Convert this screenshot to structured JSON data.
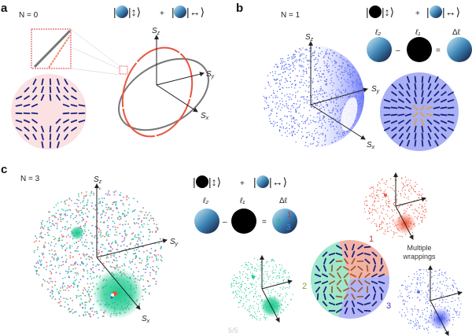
{
  "panels": {
    "a": {
      "label": "a",
      "n_label": "N = 0",
      "plus": "+"
    },
    "b": {
      "label": "b",
      "n_label": "N = 1",
      "plus": "+",
      "minus": "–",
      "equals": "=",
      "l2": "ℓ₂",
      "l1": "ℓ₁",
      "dl": "Δℓ"
    },
    "c": {
      "label": "c",
      "n_label": "N = 3",
      "plus": "+",
      "minus": "–",
      "equals": "=",
      "l2": "ℓ₂",
      "l1": "ℓ₁",
      "dl": "Δℓ",
      "region_1": "1",
      "region_2": "2",
      "region_3": "3",
      "annotation_line1": "Multiple",
      "annotation_line2": "wrappings"
    }
  },
  "axes": {
    "sz": "S",
    "sz_sub": "z",
    "sy": "S",
    "sy_sub": "y",
    "sx": "S",
    "sx_sub": "x"
  },
  "ket": {
    "vertical": "|↕⟩",
    "horizontal": "|↔⟩"
  },
  "page_indicator": "5/5",
  "colors": {
    "red": "#e8553f",
    "gray": "#777777",
    "blue": "#5c6ff0",
    "green": "#1ec98f",
    "pink_bg": "#fbe1e1",
    "lavender_bg": "#a9b0f5",
    "navy": "#1a237e"
  }
}
